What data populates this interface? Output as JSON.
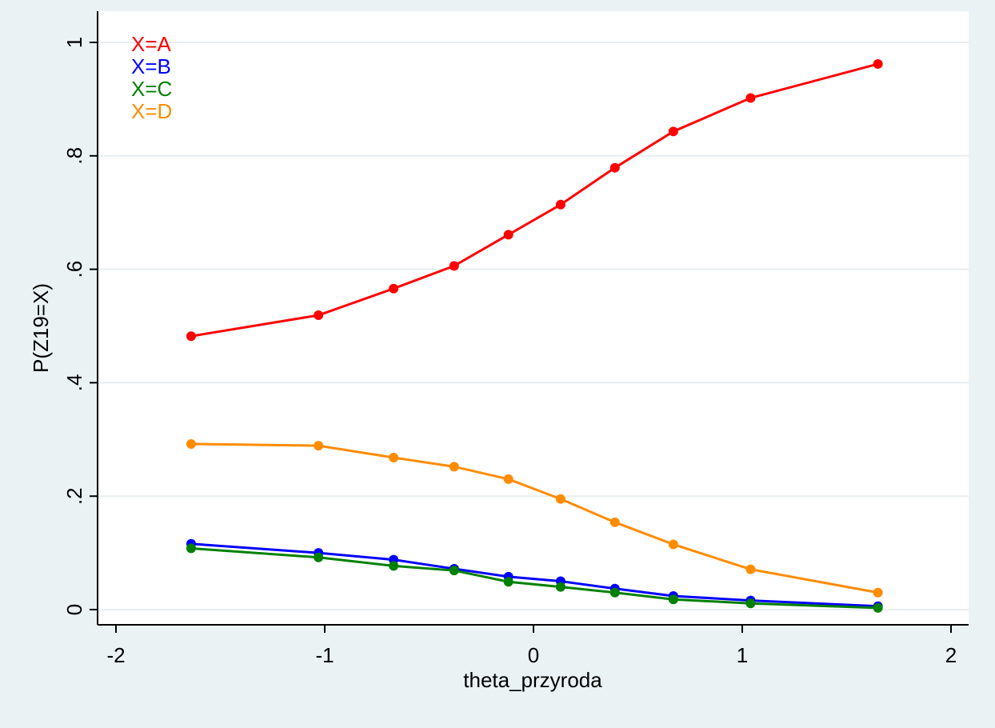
{
  "chart_data": {
    "type": "line",
    "xlabel": "theta_przyroda",
    "ylabel": "P(Z19=X)",
    "xlim": [
      -2.2,
      2.1
    ],
    "ylim": [
      -0.03,
      1.03
    ],
    "xticks": [
      -2,
      -1,
      0,
      1,
      2
    ],
    "xtick_labels": [
      "-2",
      "-1",
      "0",
      "1",
      "2"
    ],
    "yticks": [
      0,
      0.2,
      0.4,
      0.6,
      0.8,
      1
    ],
    "ytick_labels": [
      "0",
      ".2",
      ".4",
      ".6",
      ".8",
      "1"
    ],
    "grid": "horizontal",
    "legend_position": "top-left",
    "x": [
      -1.64,
      -1.03,
      -0.67,
      -0.38,
      -0.12,
      0.13,
      0.39,
      0.67,
      1.04,
      1.65
    ],
    "series": [
      {
        "name": "X=A",
        "color": "#ff0000",
        "values": [
          0.482,
          0.519,
          0.566,
          0.606,
          0.661,
          0.714,
          0.779,
          0.843,
          0.902,
          0.962
        ]
      },
      {
        "name": "X=B",
        "color": "#0000ff",
        "values": [
          0.116,
          0.1,
          0.088,
          0.072,
          0.058,
          0.05,
          0.037,
          0.024,
          0.016,
          0.006
        ]
      },
      {
        "name": "X=C",
        "color": "#008000",
        "values": [
          0.108,
          0.092,
          0.077,
          0.069,
          0.049,
          0.04,
          0.03,
          0.018,
          0.011,
          0.003
        ]
      },
      {
        "name": "X=D",
        "color": "#ff8c00",
        "values": [
          0.292,
          0.289,
          0.268,
          0.252,
          0.23,
          0.195,
          0.154,
          0.115,
          0.071,
          0.03
        ]
      }
    ]
  }
}
